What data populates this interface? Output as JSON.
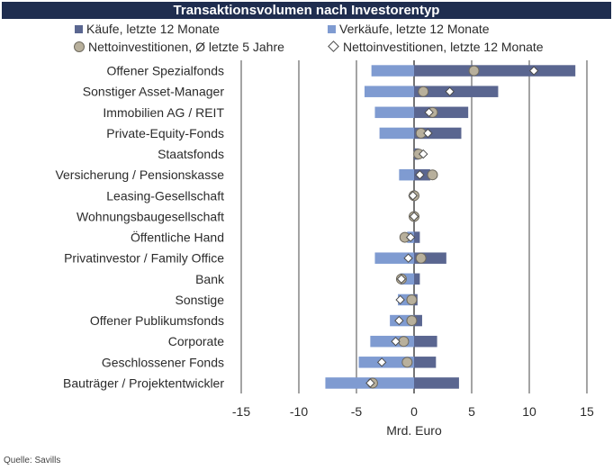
{
  "source": "Quelle: Savills",
  "chart_data": {
    "type": "bar",
    "orientation": "horizontal",
    "title": "Transaktionsvolumen nach Investorentyp",
    "xlabel": "Mrd. Euro",
    "xlim": [
      -15,
      15
    ],
    "xticks": [
      "-15",
      "-10",
      "-5",
      "0",
      "5",
      "10",
      "15"
    ],
    "grid": true,
    "legend_position": "top",
    "categories": [
      "Offener Spezialfonds",
      "Sonstiger Asset-Manager",
      "Immobilien AG / REIT",
      "Private-Equity-Fonds",
      "Staatsfonds",
      "Versicherung / Pensionskasse",
      "Leasing-Gesellschaft",
      "Wohnungsbaugesellschaft",
      "Öffentliche Hand",
      "Privatinvestor / Family Office",
      "Bank",
      "Sonstige",
      "Offener Publikumsfonds",
      "Corporate",
      "Geschlossener Fonds",
      "Bauträger / Projektentwickler"
    ],
    "series": [
      {
        "name": "Käufe, letzte 12 Monate",
        "kind": "bar",
        "color": "#5a6690",
        "values": [
          14.0,
          7.3,
          4.7,
          4.1,
          0.4,
          1.4,
          0.1,
          0.1,
          0.5,
          2.8,
          0.5,
          0.3,
          0.7,
          2.0,
          1.9,
          3.9
        ]
      },
      {
        "name": "Verkäufe, letzte 12 Monate",
        "kind": "bar",
        "color": "#7f9bd1",
        "values": [
          -3.7,
          -4.3,
          -3.4,
          -3.0,
          0.0,
          -1.3,
          0.0,
          0.0,
          -0.6,
          -3.4,
          -1.2,
          -1.4,
          -2.1,
          -3.8,
          -4.8,
          -7.7
        ]
      },
      {
        "name": "Nettoinvestitionen, Ø letzte 5 Jahre",
        "kind": "circle",
        "color": "#b8b09c",
        "values": [
          5.2,
          0.8,
          1.6,
          0.6,
          0.4,
          1.6,
          0.0,
          0.0,
          -0.8,
          0.6,
          -1.1,
          -0.2,
          -0.2,
          -0.9,
          -0.6,
          -3.6
        ]
      },
      {
        "name": "Nettoinvestitionen, letzte 12 Monate",
        "kind": "diamond",
        "color": "#ffffff",
        "values": [
          10.4,
          3.1,
          1.3,
          1.2,
          0.8,
          0.5,
          -0.1,
          0.0,
          -0.3,
          -0.5,
          -1.1,
          -1.2,
          -1.3,
          -1.6,
          -2.8,
          -3.8
        ]
      }
    ]
  }
}
